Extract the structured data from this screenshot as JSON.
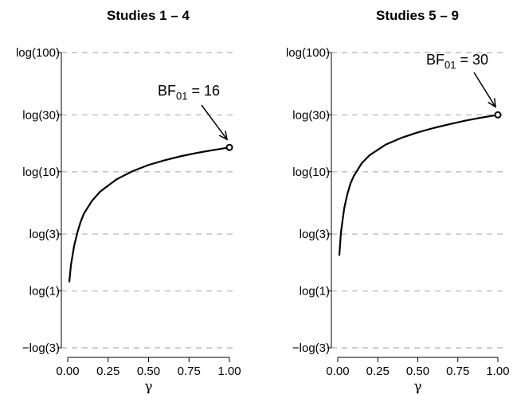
{
  "chart_data": [
    {
      "type": "line",
      "title": "Studies 1 – 4",
      "xlabel": "γ",
      "ylabel": "",
      "xlim": [
        0,
        1
      ],
      "x_ticks": [
        0,
        0.25,
        0.5,
        0.75,
        1
      ],
      "x_tick_labels": [
        "0.00",
        "0.25",
        "0.50",
        "0.75",
        "1.00"
      ],
      "y_scale": "log",
      "y_ticks": [
        0.3333,
        1,
        3,
        10,
        30,
        100
      ],
      "y_tick_labels": [
        "−log(3)",
        "log(1)",
        "log(3)",
        "log(10)",
        "log(30)",
        "log(100)"
      ],
      "grid": "horizontal dashed",
      "series": [
        {
          "x": [
            0.01,
            0.02,
            0.04,
            0.06,
            0.08,
            0.1,
            0.15,
            0.2,
            0.3,
            0.4,
            0.5,
            0.6,
            0.7,
            0.8,
            0.9,
            1.0
          ],
          "y": [
            1.2,
            1.65,
            2.4,
            3.1,
            3.8,
            4.45,
            5.7,
            6.8,
            8.6,
            10.1,
            11.4,
            12.5,
            13.5,
            14.4,
            15.2,
            16.0
          ]
        }
      ],
      "annotations": [
        {
          "base": "BF",
          "sub": "01",
          "rel": " = ",
          "value": "16",
          "x": 1.0,
          "y": 16
        }
      ]
    },
    {
      "type": "line",
      "title": "Studies 5 – 9",
      "xlabel": "γ",
      "ylabel": "",
      "xlim": [
        0,
        1
      ],
      "x_ticks": [
        0,
        0.25,
        0.5,
        0.75,
        1
      ],
      "x_tick_labels": [
        "0.00",
        "0.25",
        "0.50",
        "0.75",
        "1.00"
      ],
      "y_scale": "log",
      "y_ticks": [
        0.3333,
        1,
        3,
        10,
        30,
        100
      ],
      "y_tick_labels": [
        "−log(3)",
        "log(1)",
        "log(3)",
        "log(10)",
        "log(30)",
        "log(100)"
      ],
      "grid": "horizontal dashed",
      "series": [
        {
          "x": [
            0.01,
            0.02,
            0.04,
            0.06,
            0.08,
            0.1,
            0.15,
            0.2,
            0.3,
            0.4,
            0.5,
            0.6,
            0.7,
            0.8,
            0.9,
            1.0
          ],
          "y": [
            2.0,
            3.1,
            4.9,
            6.5,
            8.0,
            9.2,
            11.8,
            13.8,
            16.9,
            19.3,
            21.4,
            23.3,
            25.1,
            26.9,
            28.5,
            30.0
          ]
        }
      ],
      "annotations": [
        {
          "base": "BF",
          "sub": "01",
          "rel": " = ",
          "value": "30",
          "x": 1.0,
          "y": 30
        }
      ]
    }
  ]
}
